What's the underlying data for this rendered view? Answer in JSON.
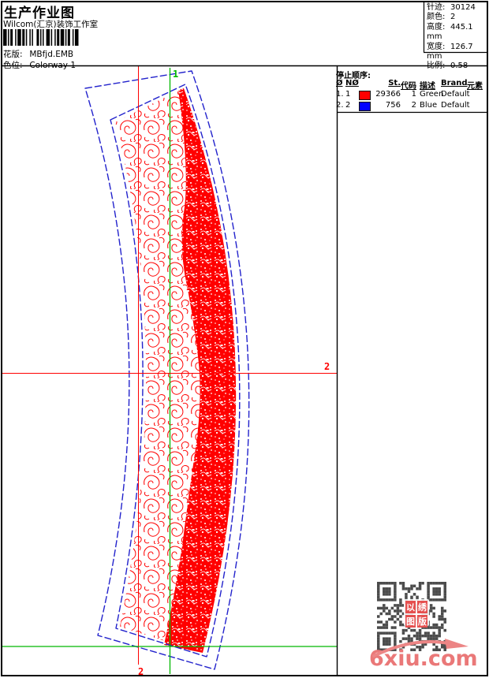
{
  "header": {
    "title": "生产作业图",
    "studio": "Wilcom(汇京)装饰工作室",
    "fields": [
      {
        "label": "花版:",
        "value": "MBfjd.EMB"
      },
      {
        "label": "色位:",
        "value": "Colorway 1"
      }
    ]
  },
  "design_info": {
    "rows": [
      {
        "label": "针迹:",
        "value": "30124"
      },
      {
        "label": "颜色:",
        "value": "2"
      },
      {
        "label": "高度:",
        "value": "445.1 mm"
      },
      {
        "label": "宽度:",
        "value": "126.7 mm"
      },
      {
        "label": "比例:",
        "value": "0.58"
      }
    ]
  },
  "stop_sequence": {
    "title": "停止顺序:",
    "columns": [
      "Ø",
      "NØ",
      "St.",
      "代码",
      "描述",
      "Brand",
      "元素"
    ],
    "rows": [
      {
        "index": "1.",
        "n": "1",
        "swatch": "#ff0000",
        "st": "29366",
        "code": "1",
        "desc": "Green",
        "brand": "Default",
        "element": ""
      },
      {
        "index": "2.",
        "n": "2",
        "swatch": "#0000ff",
        "st": "756",
        "code": "2",
        "desc": "Blue",
        "brand": "Default",
        "element": ""
      }
    ]
  },
  "canvas": {
    "marker_start": "1",
    "marker_axis_right": "2",
    "marker_end_bottom": "2",
    "colors": {
      "outline_blue": "#2222cc",
      "stitch_red": "#ff0000",
      "guide_green": "#00b800"
    }
  },
  "watermark": {
    "site": "6xiu.com",
    "stamp_chars": [
      "以",
      "绣",
      "图",
      "版"
    ]
  }
}
